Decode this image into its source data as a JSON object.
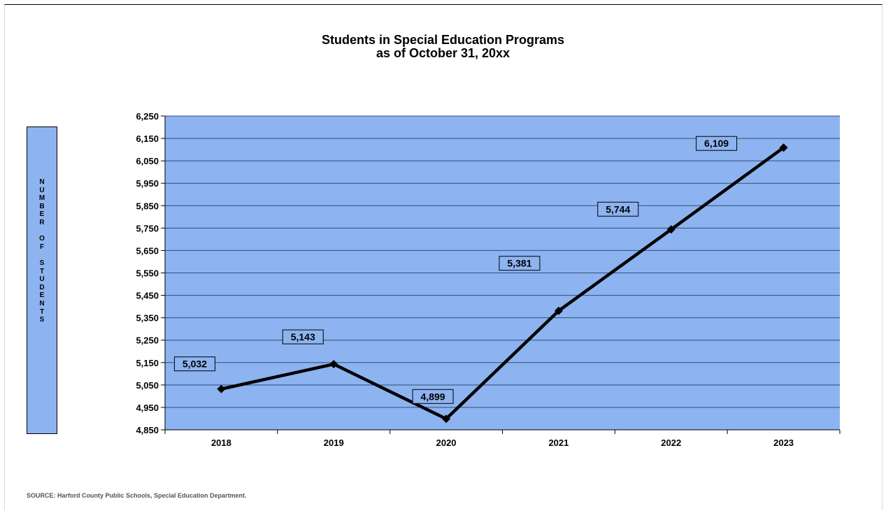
{
  "title_line1": "Students in Special Education Programs",
  "title_line2": "as of October 31, 20xx",
  "ylabel_letters": [
    "N",
    "U",
    "M",
    "B",
    "E",
    "R",
    "",
    "O",
    "F",
    "",
    "S",
    "T",
    "U",
    "D",
    "E",
    "N",
    "T",
    "S"
  ],
  "source": "SOURCE:  Harford County Public Schools, Special Education Department.",
  "colors": {
    "plot_bg": "#8db3f0",
    "line": "#000000",
    "grid": "#2f4f78"
  },
  "chart_data": {
    "type": "line",
    "title": "Students in Special Education Programs as of October 31, 20xx",
    "ylabel": "NUMBER OF STUDENTS",
    "xlabel": "",
    "categories": [
      "2018",
      "2019",
      "2020",
      "2021",
      "2022",
      "2023"
    ],
    "series": [
      {
        "values": [
          5032,
          5143,
          4899,
          5381,
          5744,
          6109
        ]
      }
    ],
    "data_labels": [
      "5,032",
      "5,143",
      "4,899",
      "5,381",
      "5,744",
      "6,109"
    ],
    "yticks": [
      "4,850",
      "4,950",
      "5,050",
      "5,150",
      "5,250",
      "5,350",
      "5,450",
      "5,550",
      "5,650",
      "5,750",
      "5,850",
      "5,950",
      "6,050",
      "6,150",
      "6,250"
    ],
    "ylim": [
      4850,
      6250
    ],
    "grid": true,
    "legend": "none"
  }
}
